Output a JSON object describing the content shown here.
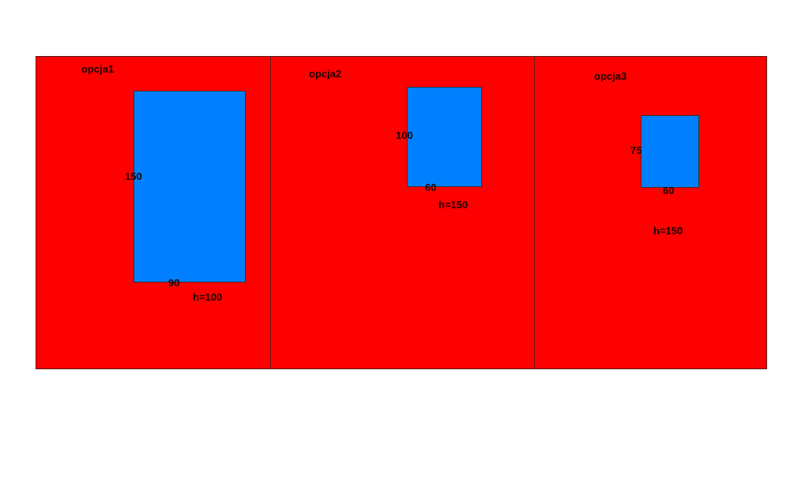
{
  "colors": {
    "panel": "#ff0000",
    "box": "#0080ff",
    "text": "#1a0000"
  },
  "options": [
    {
      "title": "opcja1",
      "side_label": "150",
      "bottom_label": "90",
      "height_label": "h=100"
    },
    {
      "title": "opcja2",
      "side_label": "100",
      "bottom_label": "60",
      "height_label": "h=150"
    },
    {
      "title": "opcja3",
      "side_label": "75",
      "bottom_label": "60",
      "height_label": "h=150"
    }
  ]
}
